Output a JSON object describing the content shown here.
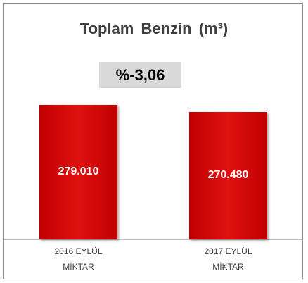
{
  "chart_data": {
    "type": "bar",
    "title": "Toplam Benzin (m³)",
    "annotation": "%-3,06",
    "categories": [
      "2016 EYLÜL MİKTAR",
      "2017 EYLÜL MİKTAR"
    ],
    "values": [
      279010,
      270480
    ],
    "value_labels": [
      "279.010",
      "270.480"
    ],
    "color": "#c00000",
    "ylim": [
      115000,
      330000
    ]
  }
}
